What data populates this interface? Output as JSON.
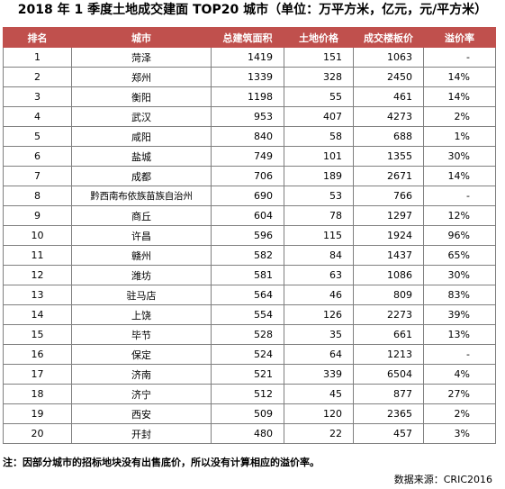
{
  "title": "2018 年 1 季度土地成交建面 TOP20 城市（单位：万平方米，亿元，元/平方米）",
  "table": {
    "headers": [
      "排名",
      "城市",
      "总建筑面积",
      "土地价格",
      "成交楼板价",
      "溢价率"
    ],
    "rows": [
      [
        "1",
        "菏泽",
        "1419",
        "151",
        "1063",
        "-"
      ],
      [
        "2",
        "郑州",
        "1339",
        "328",
        "2450",
        "14%"
      ],
      [
        "3",
        "衡阳",
        "1198",
        "55",
        "461",
        "14%"
      ],
      [
        "4",
        "武汉",
        "953",
        "407",
        "4273",
        "2%"
      ],
      [
        "5",
        "咸阳",
        "840",
        "58",
        "688",
        "1%"
      ],
      [
        "6",
        "盐城",
        "749",
        "101",
        "1355",
        "30%"
      ],
      [
        "7",
        "成都",
        "706",
        "189",
        "2671",
        "14%"
      ],
      [
        "8",
        "黔西南布依族苗族自治州",
        "690",
        "53",
        "766",
        "-"
      ],
      [
        "9",
        "商丘",
        "604",
        "78",
        "1297",
        "12%"
      ],
      [
        "10",
        "许昌",
        "596",
        "115",
        "1924",
        "96%"
      ],
      [
        "11",
        "赣州",
        "582",
        "84",
        "1437",
        "65%"
      ],
      [
        "12",
        "潍坊",
        "581",
        "63",
        "1086",
        "30%"
      ],
      [
        "13",
        "驻马店",
        "564",
        "46",
        "809",
        "83%"
      ],
      [
        "14",
        "上饶",
        "554",
        "126",
        "2273",
        "39%"
      ],
      [
        "15",
        "毕节",
        "528",
        "35",
        "661",
        "13%"
      ],
      [
        "16",
        "保定",
        "524",
        "64",
        "1213",
        "-"
      ],
      [
        "17",
        "济南",
        "521",
        "339",
        "6504",
        "4%"
      ],
      [
        "18",
        "济宁",
        "512",
        "45",
        "877",
        "27%"
      ],
      [
        "19",
        "西安",
        "509",
        "120",
        "2365",
        "2%"
      ],
      [
        "20",
        "开封",
        "480",
        "22",
        "457",
        "3%"
      ]
    ]
  },
  "note": "注：因部分城市的招标地块没有出售底价，所以没有计算相应的溢价率。",
  "source": "数据来源：CRIC2016",
  "colors": {
    "header_bg": "#c0504d",
    "header_text": "#ffffff",
    "border": "#7f7f7f"
  }
}
